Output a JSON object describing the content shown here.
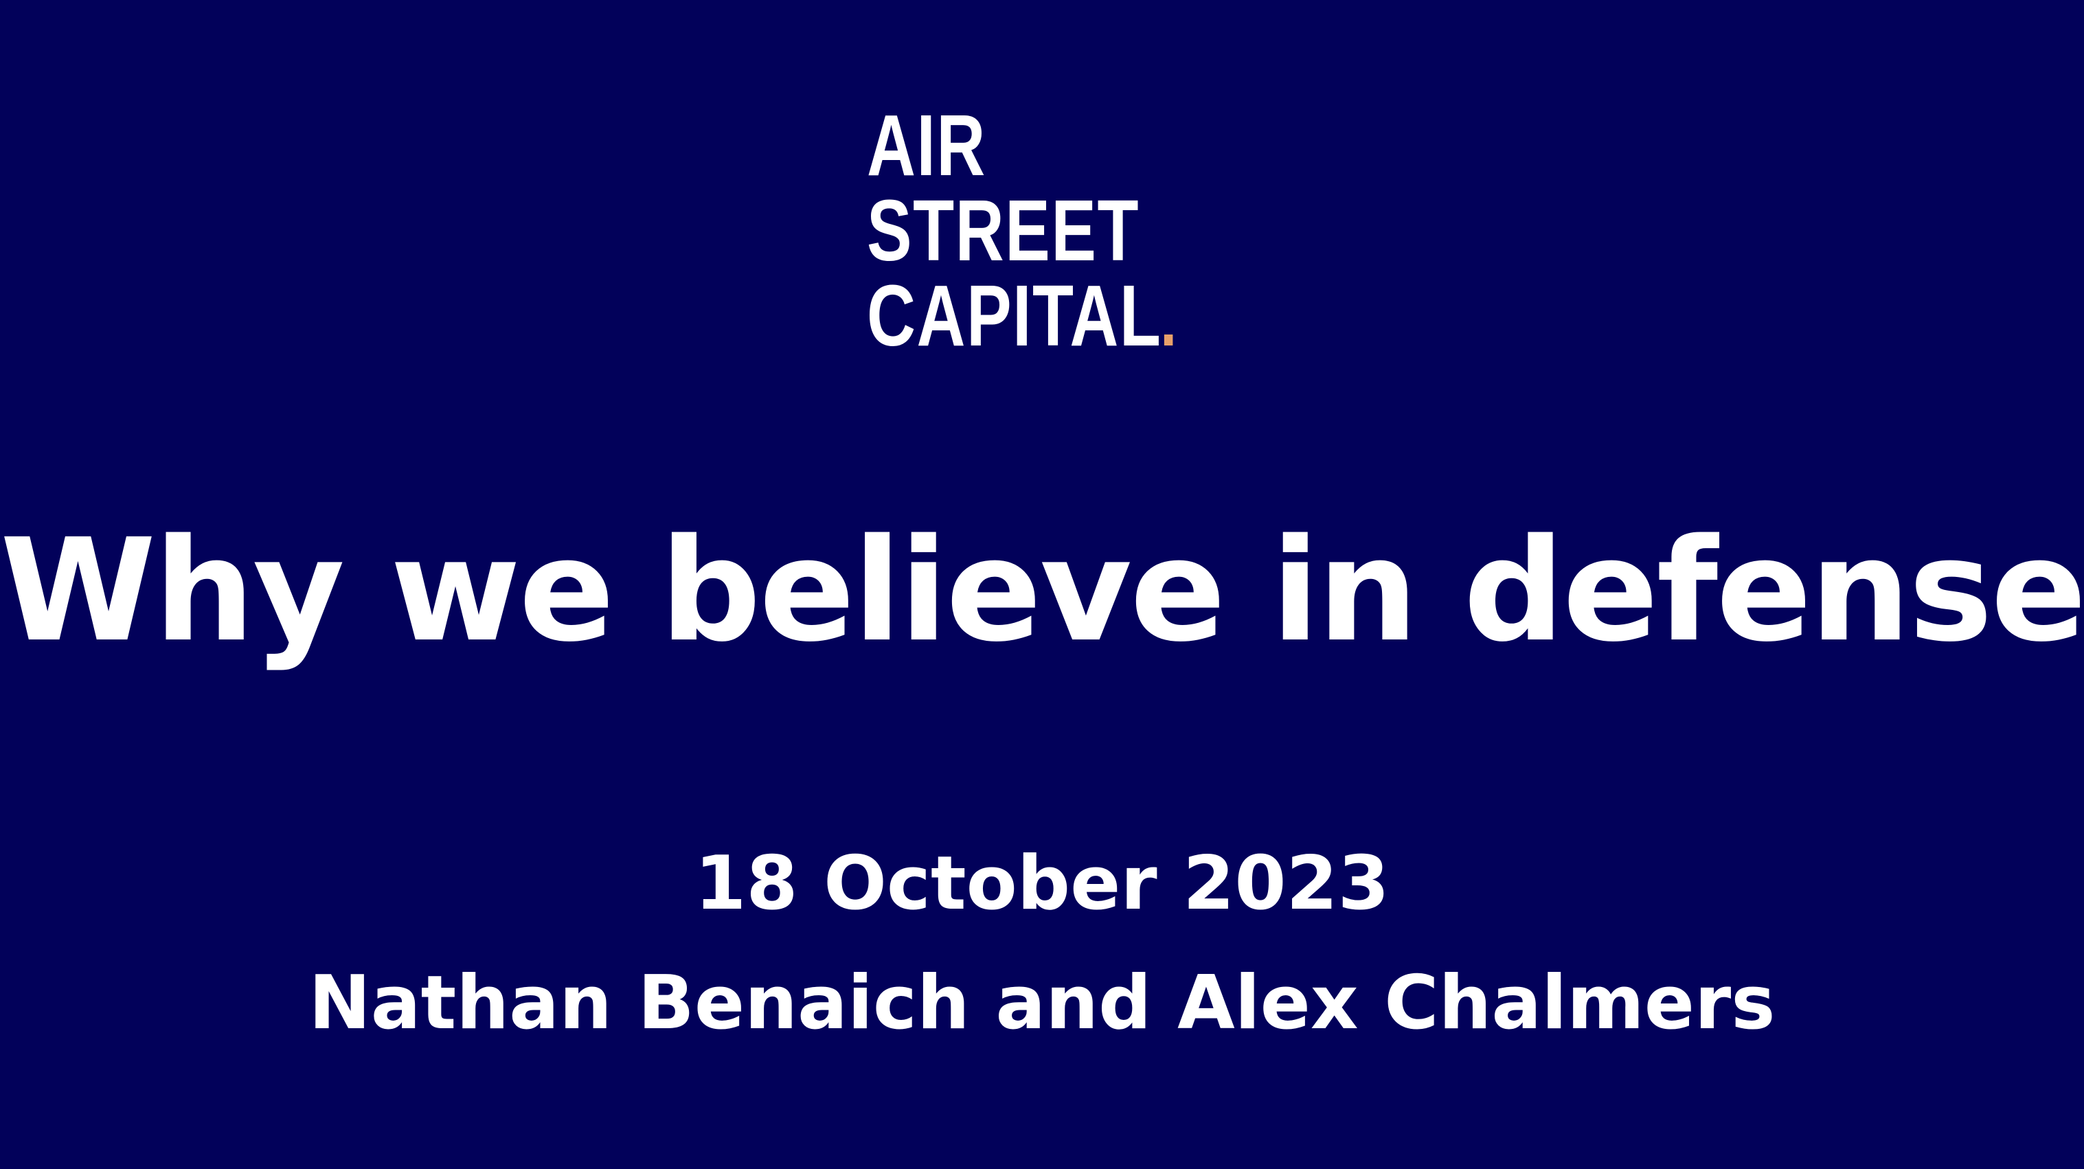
{
  "logo": {
    "line1": "AIR",
    "line2": "STREET",
    "line3": "CAPITAL",
    "dot_color": "#e8a06a"
  },
  "title": "Why we believe in defense",
  "date": "18 October 2023",
  "authors": "Nathan Benaich and Alex Chalmers",
  "colors": {
    "background": "#02015a",
    "text": "#ffffff"
  }
}
